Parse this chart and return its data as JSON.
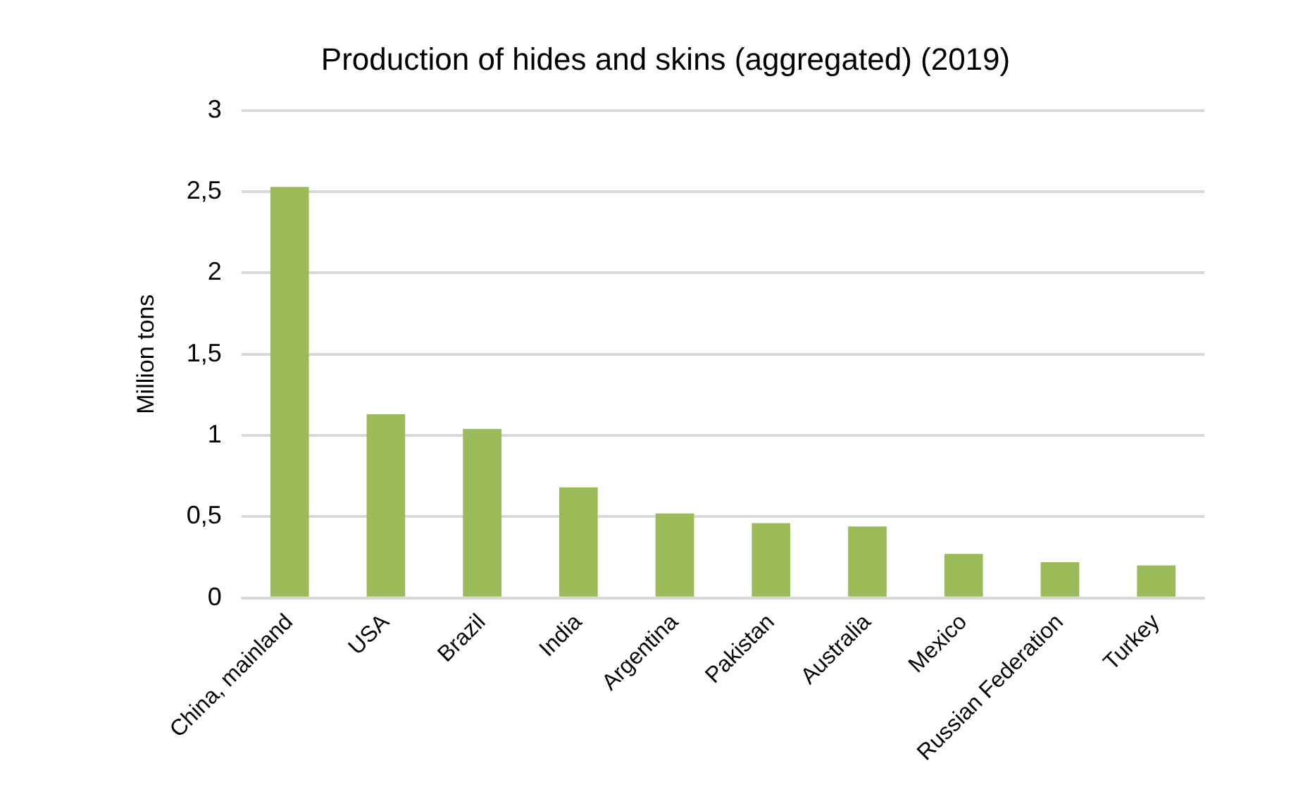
{
  "chart_data": {
    "type": "bar",
    "title": "Production of hides and skins (aggregated) (2019)",
    "ylabel": "Million tons",
    "categories": [
      "China, mainland",
      "USA",
      "Brazil",
      "India",
      "Argentina",
      "Pakistan",
      "Australia",
      "Mexico",
      "Russian Federation",
      "Turkey"
    ],
    "values": [
      2.53,
      1.13,
      1.04,
      0.68,
      0.52,
      0.46,
      0.44,
      0.27,
      0.22,
      0.2
    ],
    "color": "#9bbb59",
    "ylim": [
      0,
      3
    ],
    "yticks": [
      0,
      {
        "value": 0.5,
        "label": "0,5"
      },
      1,
      {
        "value": 1.5,
        "label": "1,5"
      },
      2,
      {
        "value": 2.5,
        "label": "2,5"
      },
      3
    ],
    "grid": "y",
    "legend": false
  }
}
